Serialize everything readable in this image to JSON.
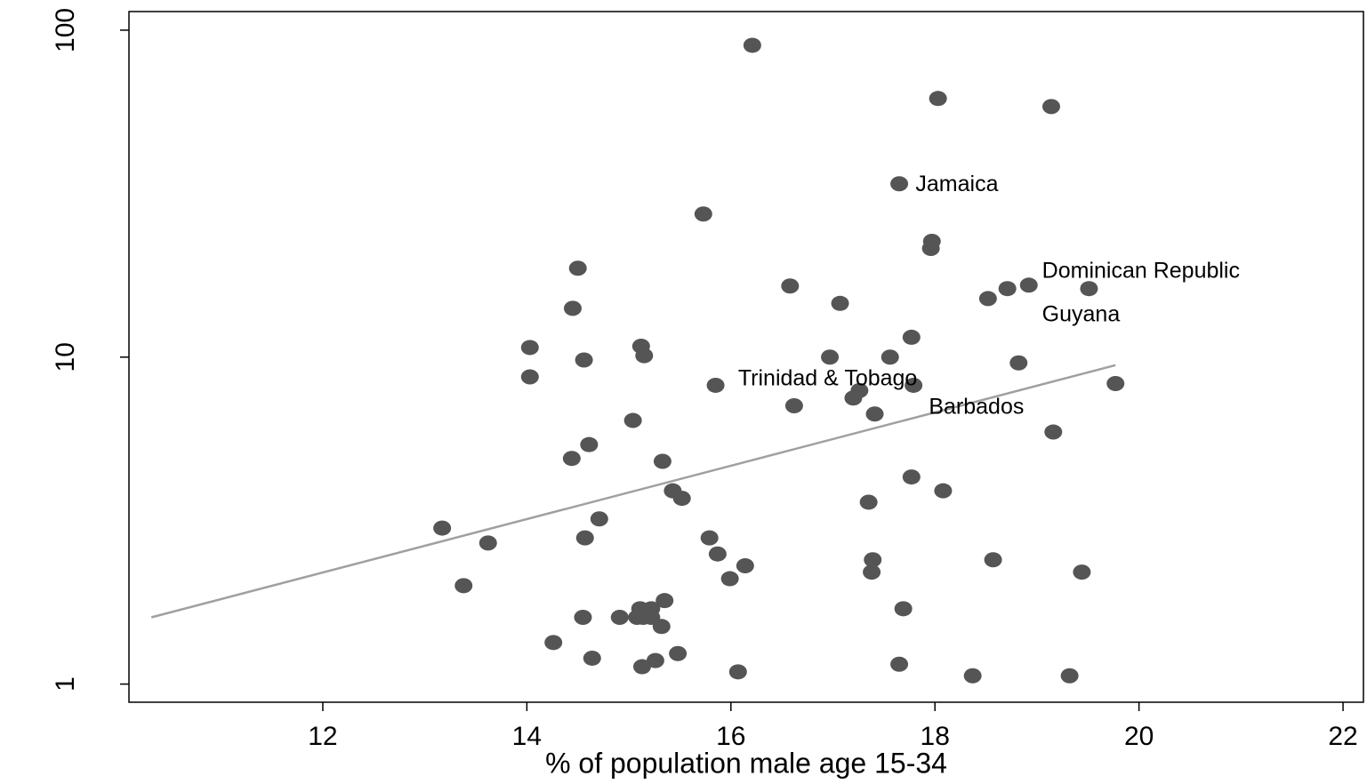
{
  "chart_data": {
    "type": "scatter",
    "xlabel": "% of population male age 15-34",
    "xlim": [
      10.1,
      22.2
    ],
    "xticks": [
      12,
      14,
      16,
      18,
      20,
      22
    ],
    "ylim": [
      0.88,
      114
    ],
    "yticks": [
      1,
      10,
      100
    ],
    "log_y": true,
    "series": [
      {
        "name": "countries",
        "color": "#555555",
        "x": [
          16.21,
          18.03,
          19.14,
          17.65,
          15.73,
          17.97,
          17.96,
          14.5,
          16.58,
          18.92,
          18.71,
          19.51,
          18.52,
          17.07,
          14.45,
          17.77,
          14.03,
          15.12,
          15.15,
          14.56,
          16.97,
          17.56,
          18.82,
          14.03,
          15.85,
          17.79,
          19.77,
          17.26,
          17.2,
          16.62,
          17.41,
          15.04,
          19.16,
          14.61,
          14.44,
          15.33,
          17.77,
          15.43,
          18.08,
          15.52,
          17.35,
          14.71,
          13.17,
          15.79,
          13.62,
          14.57,
          15.87,
          17.39,
          18.57,
          16.14,
          17.38,
          15.99,
          19.44,
          13.38,
          15.35,
          15.11,
          15.22,
          17.69,
          14.55,
          14.91,
          15.14,
          15.22,
          15.08,
          15.32,
          14.26,
          14.64,
          15.48,
          15.26,
          15.13,
          17.65,
          16.07,
          18.37,
          19.32
        ],
        "values": [
          89.9,
          61.8,
          58.4,
          33.9,
          27.4,
          22.6,
          21.5,
          18.7,
          16.5,
          16.6,
          16.2,
          16.2,
          15.1,
          14.6,
          14.1,
          11.5,
          10.7,
          10.8,
          10.1,
          9.8,
          10.0,
          10.0,
          9.6,
          8.7,
          8.2,
          8.2,
          8.3,
          7.9,
          7.5,
          7.1,
          6.7,
          6.4,
          5.9,
          5.4,
          4.9,
          4.8,
          4.3,
          3.9,
          3.9,
          3.7,
          3.6,
          3.2,
          3.0,
          2.8,
          2.7,
          2.8,
          2.5,
          2.4,
          2.4,
          2.3,
          2.2,
          2.1,
          2.2,
          2.0,
          1.8,
          1.7,
          1.7,
          1.7,
          1.6,
          1.6,
          1.6,
          1.6,
          1.6,
          1.5,
          1.34,
          1.2,
          1.24,
          1.18,
          1.13,
          1.15,
          1.09,
          1.06,
          1.06
        ]
      },
      {
        "name": "fit",
        "type": "line",
        "color": "#a0a0a0",
        "x": [
          10.32,
          19.77
        ],
        "values": [
          1.6,
          9.45
        ]
      }
    ],
    "annotations": [
      {
        "text": "Jamaica",
        "x": 17.81,
        "y": 33.5
      },
      {
        "text": "Dominican Republic",
        "x": 19.05,
        "y": 18.2
      },
      {
        "text": "Guyana",
        "x": 19.05,
        "y": 13.4
      },
      {
        "text": "Trinidad & Tobago",
        "x": 16.07,
        "y": 8.55
      },
      {
        "text": "Barbados",
        "x": 17.94,
        "y": 7.0
      }
    ]
  }
}
